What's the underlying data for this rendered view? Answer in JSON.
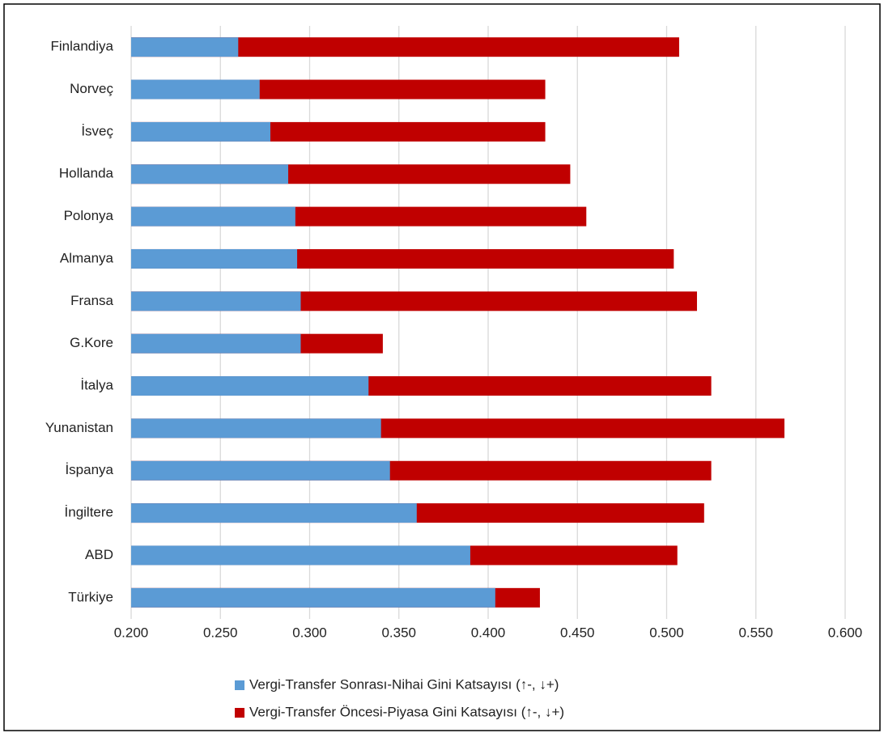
{
  "chart_data": {
    "type": "bar",
    "orientation": "horizontal",
    "categories": [
      "Finlandiya",
      "Norveç",
      "İsveç",
      "Hollanda",
      "Polonya",
      "Almanya",
      "Fransa",
      "G.Kore",
      "İtalya",
      "Yunanistan",
      "İspanya",
      "İngiltere",
      "ABD",
      "Türkiye"
    ],
    "series": [
      {
        "name": "Vergi-Transfer Sonrası-Nihai Gini Katsayısı (↑-, ↓+)",
        "color": "#5b9bd5",
        "values": [
          0.26,
          0.272,
          0.278,
          0.288,
          0.292,
          0.293,
          0.295,
          0.295,
          0.333,
          0.34,
          0.345,
          0.36,
          0.39,
          0.404
        ]
      },
      {
        "name": "Vergi-Transfer Öncesi-Piyasa Gini Katsayısı (↑-, ↓+)",
        "color": "#c00000",
        "values": [
          0.507,
          0.432,
          0.432,
          0.446,
          0.455,
          0.504,
          0.517,
          0.341,
          0.525,
          0.566,
          0.525,
          0.521,
          0.506,
          0.429
        ]
      }
    ],
    "xlim": [
      0.2,
      0.6
    ],
    "xticks": [
      {
        "value": 0.2,
        "label": "0.200"
      },
      {
        "value": 0.25,
        "label": "0.250"
      },
      {
        "value": 0.3,
        "label": "0.300"
      },
      {
        "value": 0.35,
        "label": "0.350"
      },
      {
        "value": 0.4,
        "label": "0.400"
      },
      {
        "value": 0.45,
        "label": "0.450"
      },
      {
        "value": 0.5,
        "label": "0.500"
      },
      {
        "value": 0.55,
        "label": "0.550"
      },
      {
        "value": 0.6,
        "label": "0.600"
      }
    ],
    "grid": true
  }
}
